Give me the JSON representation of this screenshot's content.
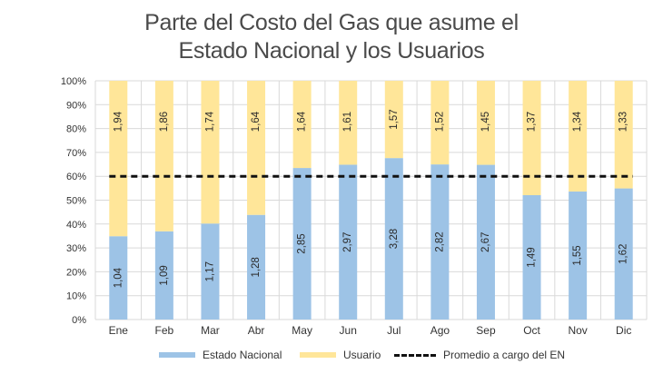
{
  "title_line1": "Parte del Costo del Gas que asume el",
  "title_line2": "Estado Nacional y los Usuarios",
  "colors": {
    "estado": "#9dc3e6",
    "usuario": "#ffe699",
    "line": "#111111",
    "grid": "#d9d9d9"
  },
  "legend": {
    "estado": "Estado Nacional",
    "usuario": "Usuario",
    "promedio": "Promedio a cargo del EN"
  },
  "chart_data": {
    "type": "bar",
    "stacked": "percent",
    "title": "Parte del Costo del Gas que asume el Estado Nacional y los Usuarios",
    "categories": [
      "Ene",
      "Feb",
      "Mar",
      "Abr",
      "May",
      "Jun",
      "Jul",
      "Ago",
      "Sep",
      "Oct",
      "Nov",
      "Dic"
    ],
    "series": [
      {
        "name": "Estado Nacional",
        "values": [
          1.04,
          1.09,
          1.17,
          1.28,
          2.85,
          2.97,
          3.28,
          2.82,
          2.67,
          1.49,
          1.55,
          1.62
        ],
        "labels": [
          "1,04",
          "1,09",
          "1,17",
          "1,28",
          "2,85",
          "2,97",
          "3,28",
          "2,82",
          "2,67",
          "1,49",
          "1,55",
          "1,62"
        ]
      },
      {
        "name": "Usuario",
        "values": [
          1.94,
          1.86,
          1.74,
          1.64,
          1.64,
          1.61,
          1.57,
          1.52,
          1.45,
          1.37,
          1.34,
          1.33
        ],
        "labels": [
          "1,94",
          "1,86",
          "1,74",
          "1,64",
          "1,64",
          "1,61",
          "1,57",
          "1,52",
          "1,45",
          "1,37",
          "1,34",
          "1,33"
        ]
      }
    ],
    "promedio": {
      "name": "Promedio a cargo del EN",
      "value": 60
    },
    "yticks": [
      "0%",
      "10%",
      "20%",
      "30%",
      "40%",
      "50%",
      "60%",
      "70%",
      "80%",
      "90%",
      "100%"
    ],
    "ylim": [
      0,
      100
    ],
    "grid": true,
    "legend_position": "bottom"
  }
}
